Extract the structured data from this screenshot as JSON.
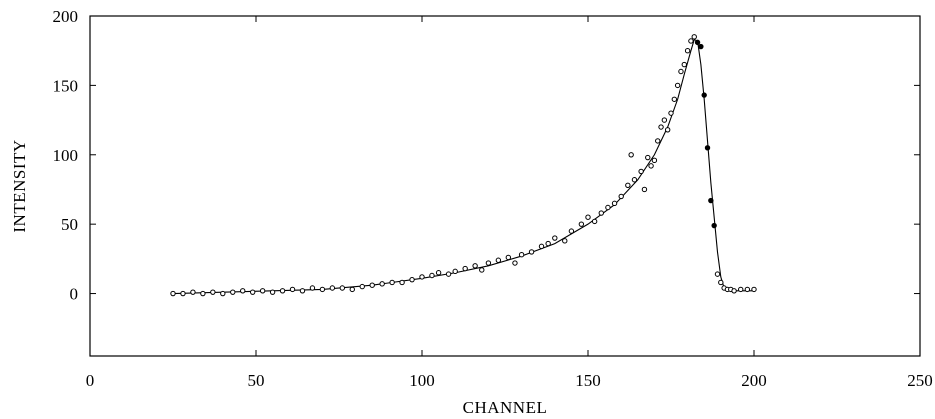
{
  "chart_data": {
    "type": "scatter",
    "title": "",
    "xlabel": "CHANNEL",
    "ylabel": "INTENSITY",
    "xlim": [
      0,
      250
    ],
    "ylim": [
      -45,
      200
    ],
    "grid": false,
    "x_ticks": [
      0,
      50,
      100,
      150,
      200,
      250
    ],
    "x_tick_labels": [
      "0",
      "50",
      "100",
      "150",
      "200",
      "250"
    ],
    "y_ticks": [
      0,
      50,
      100,
      150,
      200
    ],
    "y_tick_labels": [
      "0",
      "50",
      "100",
      "150",
      "200"
    ],
    "series": [
      {
        "kind": "points",
        "x": [
          25,
          28,
          31,
          34,
          37,
          40,
          43,
          46,
          49,
          52,
          55,
          58,
          61,
          64,
          67,
          70,
          73,
          76,
          79,
          82,
          85,
          88,
          91,
          94,
          97,
          100,
          103,
          105,
          108,
          110,
          113,
          116,
          118,
          120,
          123,
          126,
          128,
          130,
          133,
          136,
          138,
          140,
          143,
          145,
          148,
          150,
          152,
          154,
          156,
          158,
          160,
          162,
          163,
          164,
          166,
          167,
          168,
          169,
          170,
          171,
          172,
          173,
          174,
          175,
          176,
          177,
          178,
          179,
          180,
          181,
          182,
          183,
          184,
          185,
          186,
          187,
          188,
          189,
          190,
          191,
          192,
          193,
          194,
          196,
          198,
          200
        ],
        "y": [
          0,
          0,
          1,
          0,
          1,
          0,
          1,
          2,
          1,
          2,
          1,
          2,
          3,
          2,
          4,
          3,
          4,
          4,
          3,
          5,
          6,
          7,
          8,
          8,
          10,
          12,
          13,
          15,
          14,
          16,
          18,
          20,
          17,
          22,
          24,
          26,
          22,
          28,
          30,
          34,
          36,
          40,
          38,
          45,
          50,
          55,
          52,
          58,
          62,
          65,
          70,
          78,
          100,
          82,
          88,
          75,
          98,
          92,
          96,
          110,
          120,
          125,
          118,
          130,
          140,
          150,
          160,
          165,
          175,
          182,
          185,
          181,
          178,
          143,
          105,
          67,
          49,
          14,
          8,
          4,
          3,
          3,
          2,
          3,
          3,
          3
        ]
      },
      {
        "kind": "fit-curve",
        "x": [
          25,
          40,
          55,
          70,
          85,
          100,
          110,
          120,
          130,
          140,
          150,
          158,
          165,
          170,
          174,
          177,
          179,
          181,
          182,
          183,
          184,
          185,
          186,
          187,
          188,
          189,
          190,
          191,
          193,
          196,
          200
        ],
        "y": [
          0,
          1,
          2,
          3,
          6,
          11,
          15,
          20,
          27,
          36,
          50,
          64,
          82,
          100,
          120,
          140,
          158,
          175,
          183,
          182,
          165,
          140,
          110,
          80,
          55,
          30,
          12,
          4,
          2,
          2,
          2
        ]
      }
    ]
  }
}
